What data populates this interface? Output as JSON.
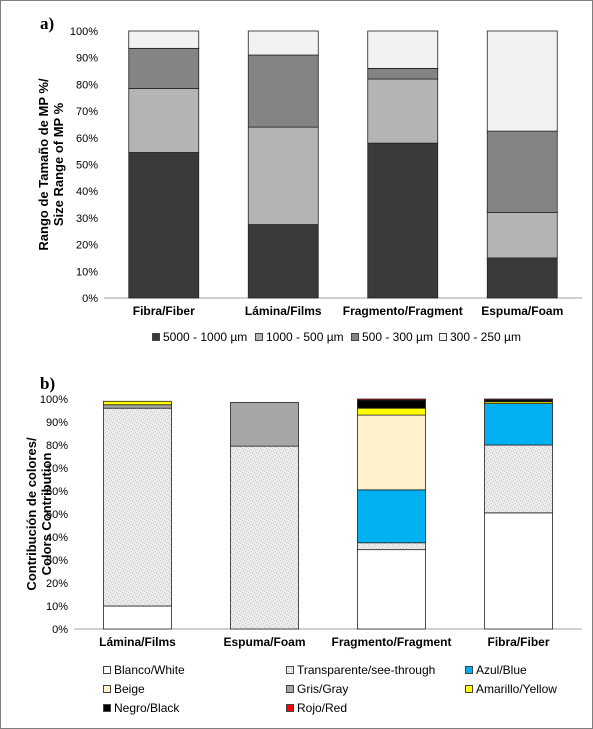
{
  "panel_a_label": "a)",
  "panel_b_label": "b)",
  "chart_data": [
    {
      "type": "bar",
      "stacked": true,
      "ylabel": "Rango de Tamaño de MP %/ Size Range of MP %",
      "ylabel_lines": [
        "Rango de Tamaño de MP %/",
        "Size Range of MP %"
      ],
      "ylim": [
        0,
        100
      ],
      "yticks": [
        "0%",
        "10%",
        "20%",
        "30%",
        "40%",
        "50%",
        "60%",
        "70%",
        "80%",
        "90%",
        "100%"
      ],
      "categories": [
        "Fibra/Fiber",
        "Lámina/Films",
        "Fragmento/Fragment",
        "Espuma/Foam"
      ],
      "legend_position": "bottom",
      "series": [
        {
          "name": "5000  - 1000 µm",
          "color": "#3a3a3a",
          "values": [
            54.5,
            27.5,
            58,
            15
          ]
        },
        {
          "name": "1000 - 500 µm",
          "color": "#b4b4b4",
          "values": [
            24,
            36.5,
            24,
            17
          ]
        },
        {
          "name": "500 - 300 µm",
          "color": "#848484",
          "values": [
            15,
            27,
            4,
            30.5
          ]
        },
        {
          "name": "300 - 250 µm",
          "color": "#f2f2f2",
          "values": [
            6.5,
            9,
            14,
            37.5
          ]
        }
      ]
    },
    {
      "type": "bar",
      "stacked": true,
      "ylabel": "Contribución de colores/ Colors Contribution",
      "ylabel_lines": [
        "Contribución de colores/",
        "Colors Contribution"
      ],
      "ylim": [
        0,
        100
      ],
      "yticks": [
        "0%",
        "10%",
        "20%",
        "30%",
        "40%",
        "50%",
        "60%",
        "70%",
        "80%",
        "90%",
        "100%"
      ],
      "categories": [
        "Lámina/Films",
        "Espuma/Foam",
        "Fragmento/Fragment",
        "Fibra/Fiber"
      ],
      "legend_position": "bottom",
      "series": [
        {
          "name": "Blanco/White",
          "color": "#ffffff",
          "values": [
            10,
            0,
            34.5,
            50.5
          ]
        },
        {
          "name": "Transparente/see-through",
          "color": "#ececec",
          "pattern": "speckle",
          "values": [
            86,
            79.5,
            3,
            29.5
          ]
        },
        {
          "name": "Azul/Blue",
          "color": "#00b0f0",
          "values": [
            0,
            0,
            23,
            18
          ]
        },
        {
          "name": "Beige",
          "color": "#fff2cc",
          "values": [
            0,
            0,
            32.5,
            0
          ]
        },
        {
          "name": "Gris/Gray",
          "color": "#a6a6a6",
          "values": [
            1.5,
            19,
            0,
            0
          ]
        },
        {
          "name": "Amarillo/Yellow",
          "color": "#ffff00",
          "values": [
            1.5,
            0,
            3,
            0.8
          ]
        },
        {
          "name": "Negro/Black",
          "color": "#000000",
          "values": [
            0,
            0,
            3.5,
            0.8
          ]
        },
        {
          "name": "Rojo/Red",
          "color": "#ff0000",
          "values": [
            0,
            0,
            0.5,
            0.4
          ]
        }
      ]
    }
  ]
}
